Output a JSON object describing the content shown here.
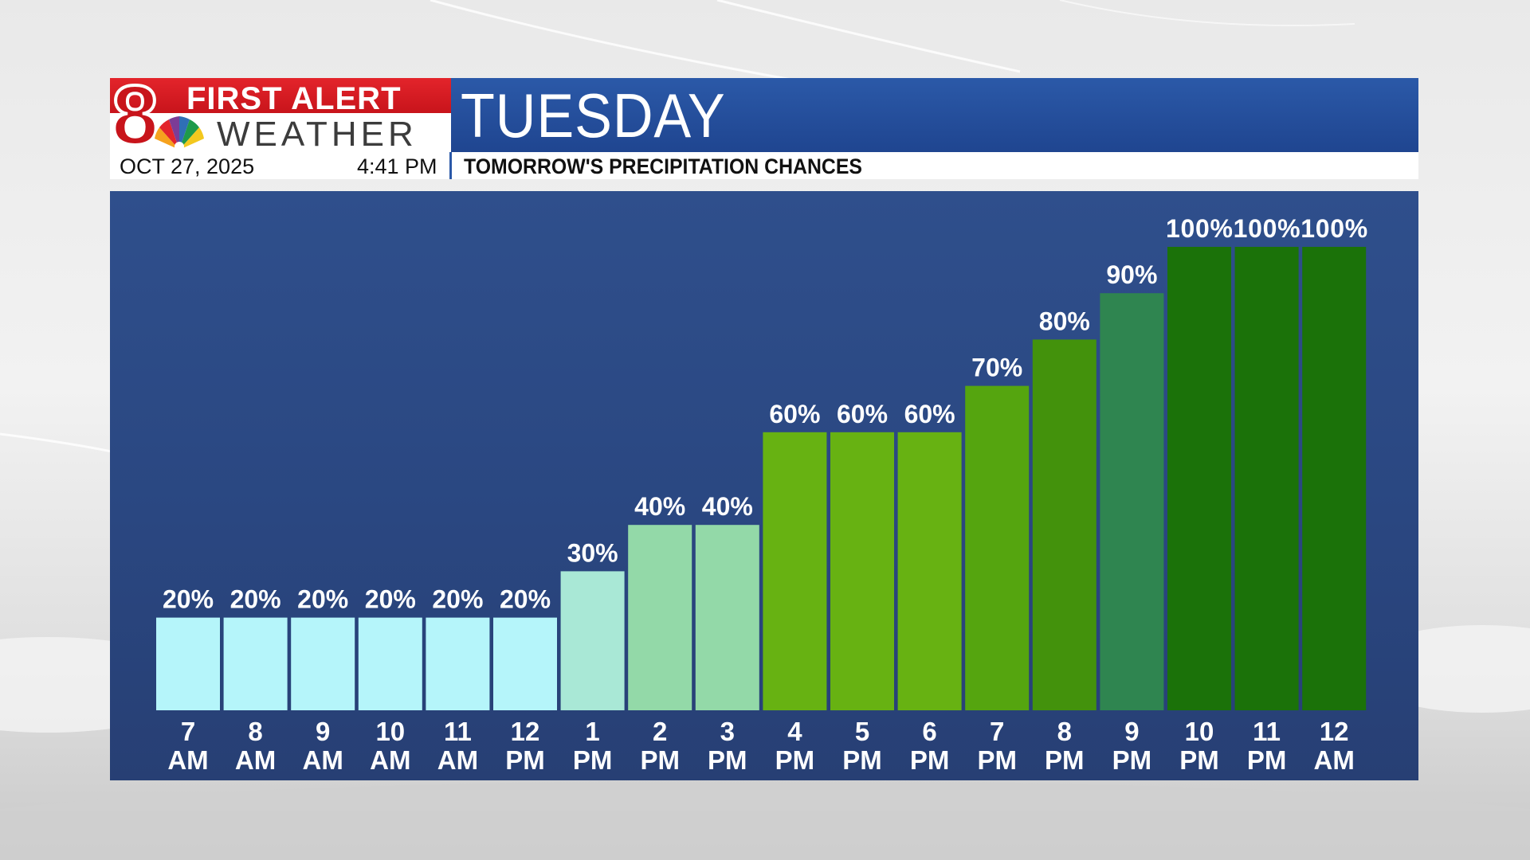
{
  "header": {
    "logo_line1": "FIRST ALERT",
    "logo_line2": "WEATHER",
    "logo_number": "8",
    "day_title": "TUESDAY",
    "date": "OCT 27, 2025",
    "time": "4:41 PM",
    "subtitle": "TOMORROW'S PRECIPITATION CHANCES"
  },
  "colors": {
    "title_bar": "#2b59a8",
    "logo_red": "#c8141b",
    "panel": "#2b4883"
  },
  "chart_data": {
    "type": "bar",
    "title": "TOMORROW'S PRECIPITATION CHANCES",
    "xlabel": "",
    "ylabel": "",
    "ylim": [
      0,
      100
    ],
    "grid": false,
    "categories": [
      [
        "7",
        "AM"
      ],
      [
        "8",
        "AM"
      ],
      [
        "9",
        "AM"
      ],
      [
        "10",
        "AM"
      ],
      [
        "11",
        "AM"
      ],
      [
        "12",
        "PM"
      ],
      [
        "1",
        "PM"
      ],
      [
        "2",
        "PM"
      ],
      [
        "3",
        "PM"
      ],
      [
        "4",
        "PM"
      ],
      [
        "5",
        "PM"
      ],
      [
        "6",
        "PM"
      ],
      [
        "7",
        "PM"
      ],
      [
        "8",
        "PM"
      ],
      [
        "9",
        "PM"
      ],
      [
        "10",
        "PM"
      ],
      [
        "11",
        "PM"
      ],
      [
        "12",
        "AM"
      ]
    ],
    "values": [
      20,
      20,
      20,
      20,
      20,
      20,
      30,
      40,
      40,
      60,
      60,
      60,
      70,
      80,
      90,
      100,
      100,
      100
    ],
    "value_labels": [
      "20%",
      "20%",
      "20%",
      "20%",
      "20%",
      "20%",
      "30%",
      "40%",
      "40%",
      "60%",
      "60%",
      "60%",
      "70%",
      "80%",
      "90%",
      "100%",
      "100%",
      "100%"
    ],
    "bar_colors": [
      "#b5f5fa",
      "#b5f5fa",
      "#b5f5fa",
      "#b5f5fa",
      "#b5f5fa",
      "#b5f5fa",
      "#a9e8d6",
      "#93d9a8",
      "#93d9a8",
      "#67b212",
      "#67b212",
      "#67b212",
      "#55a50f",
      "#43920c",
      "#2f8550",
      "#1b7209",
      "#1b7209",
      "#1b7209"
    ]
  }
}
